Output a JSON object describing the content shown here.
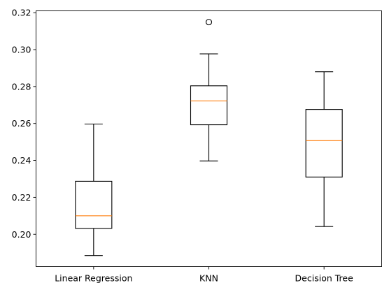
{
  "chart_data": {
    "type": "boxplot",
    "title": "",
    "xlabel": "",
    "ylabel": "",
    "categories": [
      "Linear Regression",
      "KNN",
      "Decision Tree"
    ],
    "boxes": [
      {
        "label": "Linear Regression",
        "whisker_low": 0.1885,
        "q1": 0.2032,
        "median": 0.21,
        "q3": 0.2287,
        "whisker_high": 0.2597,
        "outliers": []
      },
      {
        "label": "KNN",
        "whisker_low": 0.2397,
        "q1": 0.2593,
        "median": 0.2722,
        "q3": 0.2804,
        "whisker_high": 0.2977,
        "outliers": [
          0.3149
        ]
      },
      {
        "label": "Decision Tree",
        "whisker_low": 0.2042,
        "q1": 0.231,
        "median": 0.2507,
        "q3": 0.2676,
        "whisker_high": 0.288,
        "outliers": []
      }
    ],
    "ylim": [
      0.1825,
      0.321
    ],
    "yticks": [
      0.2,
      0.22,
      0.24,
      0.26,
      0.28,
      0.3,
      0.32
    ],
    "ytick_labels": [
      "0.20",
      "0.22",
      "0.24",
      "0.26",
      "0.28",
      "0.30",
      "0.32"
    ],
    "grid": false,
    "colors": {
      "box": "#000000",
      "median": "#ff7f0e",
      "axes": "#000000"
    }
  }
}
